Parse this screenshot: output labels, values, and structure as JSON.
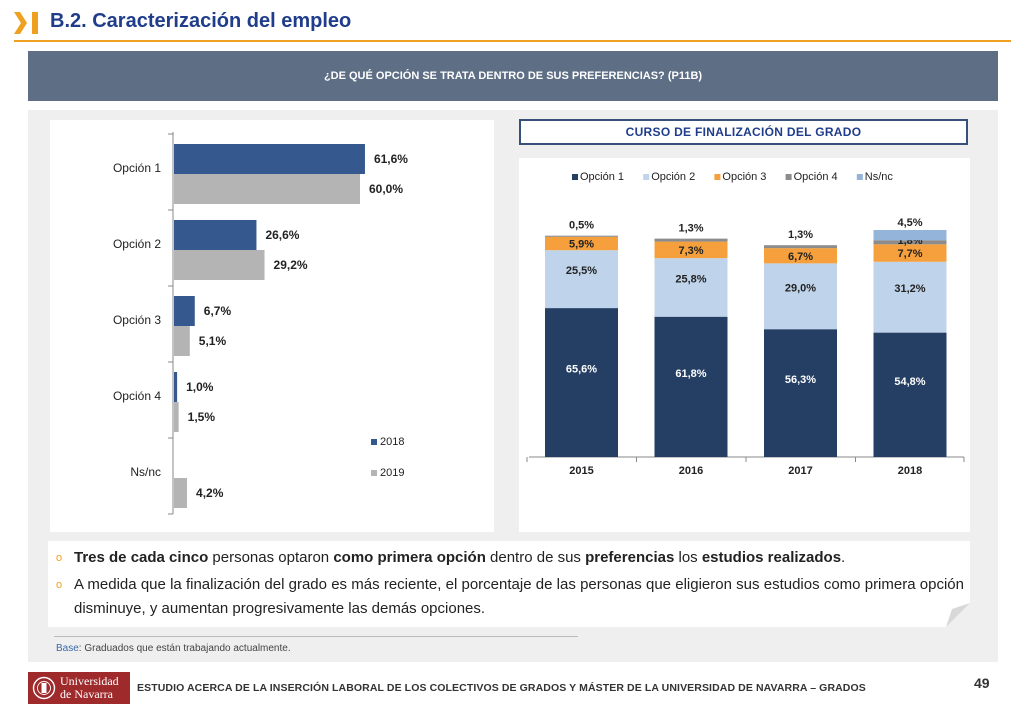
{
  "header": {
    "title": "B.2. Caracterización del empleo",
    "icon": "chevron-right-bars-icon",
    "accent_color": "#f0a020",
    "title_color": "#1f3d8a"
  },
  "banner": {
    "question": "¿DE QUÉ OPCIÓN SE TRATA DENTRO DE SUS PREFERENCIAS? (P11B)",
    "color": "#5e6e85"
  },
  "right_panel": {
    "subtitle": "CURSO DE FINALIZACIÓN DEL GRADO"
  },
  "chart_data": [
    {
      "type": "bar",
      "orientation": "horizontal",
      "categories": [
        "Opción 1",
        "Opción 2",
        "Opción 3",
        "Opción 4",
        "Ns/nc"
      ],
      "series": [
        {
          "name": "2018",
          "color": "#35598f",
          "values": [
            61.6,
            26.6,
            6.7,
            1.0,
            null
          ],
          "labels": [
            "61,6%",
            "26,6%",
            "6,7%",
            "1,0%",
            ""
          ]
        },
        {
          "name": "2019",
          "color": "#b4b4b4",
          "values": [
            60.0,
            29.2,
            5.1,
            1.5,
            4.2
          ],
          "labels": [
            "60,0%",
            "29,2%",
            "5,1%",
            "1,5%",
            "4,2%"
          ]
        }
      ],
      "xlim": [
        0,
        100
      ],
      "legend": "right",
      "grid": false
    },
    {
      "type": "bar",
      "stacked": true,
      "categories": [
        "2015",
        "2016",
        "2017",
        "2018"
      ],
      "series": [
        {
          "name": "Opción 1",
          "color": "#253f64",
          "values": [
            65.6,
            61.8,
            56.3,
            54.8
          ],
          "labels": [
            "65,6%",
            "61,8%",
            "56,3%",
            "54,8%"
          ]
        },
        {
          "name": "Opción 2",
          "color": "#bfd3ea",
          "values": [
            25.5,
            25.8,
            29.0,
            31.2
          ],
          "labels": [
            "25,5%",
            "25,8%",
            "29,0%",
            "31,2%"
          ]
        },
        {
          "name": "Opción 3",
          "color": "#f5a03c",
          "values": [
            5.9,
            7.3,
            6.7,
            7.7
          ],
          "labels": [
            "5,9%",
            "7,3%",
            "6,7%",
            "7,7%"
          ]
        },
        {
          "name": "Opción 4",
          "color": "#8c8c8c",
          "values": [
            0.5,
            1.3,
            1.3,
            1.8
          ],
          "labels": [
            "0,5%",
            "1,3%",
            "1,3%",
            "1,8%"
          ]
        },
        {
          "name": "Ns/nc",
          "color": "#95b4da",
          "values": [
            null,
            null,
            null,
            4.5
          ],
          "labels": [
            "",
            "",
            "",
            "4,5%"
          ]
        }
      ],
      "ylim": [
        0,
        100
      ],
      "legend": "top",
      "grid": false
    }
  ],
  "notes": [
    {
      "parts": [
        {
          "text": "Tres de cada cinco",
          "bold": true
        },
        {
          "text": " personas optaron ",
          "bold": false
        },
        {
          "text": "como primera opción",
          "bold": true
        },
        {
          "text": " dentro de sus ",
          "bold": false
        },
        {
          "text": "preferencias",
          "bold": true
        },
        {
          "text": " los ",
          "bold": false
        },
        {
          "text": "estudios realizados",
          "bold": true
        },
        {
          "text": ".",
          "bold": false
        }
      ]
    },
    {
      "parts": [
        {
          "text": "A medida que la finalización del grado es más reciente, el porcentaje de las personas que eligieron sus estudios como primera opción disminuye, y aumentan progresivamente las demás opciones.",
          "bold": false
        }
      ]
    }
  ],
  "base": {
    "label": "Base",
    "text": ": Graduados que están trabajando actualmente."
  },
  "footer": {
    "logo_line1": "Universidad",
    "logo_line2": "de Navarra",
    "logo_icon": "university-seal-icon",
    "logo_color": "#9e2a2b",
    "text": "ESTUDIO ACERCA DE LA INSERCIÓN LABORAL DE LOS COLECTIVOS DE GRADOS Y MÁSTER DE LA UNIVERSIDAD DE NAVARRA – GRADOS",
    "page_number": "49"
  }
}
